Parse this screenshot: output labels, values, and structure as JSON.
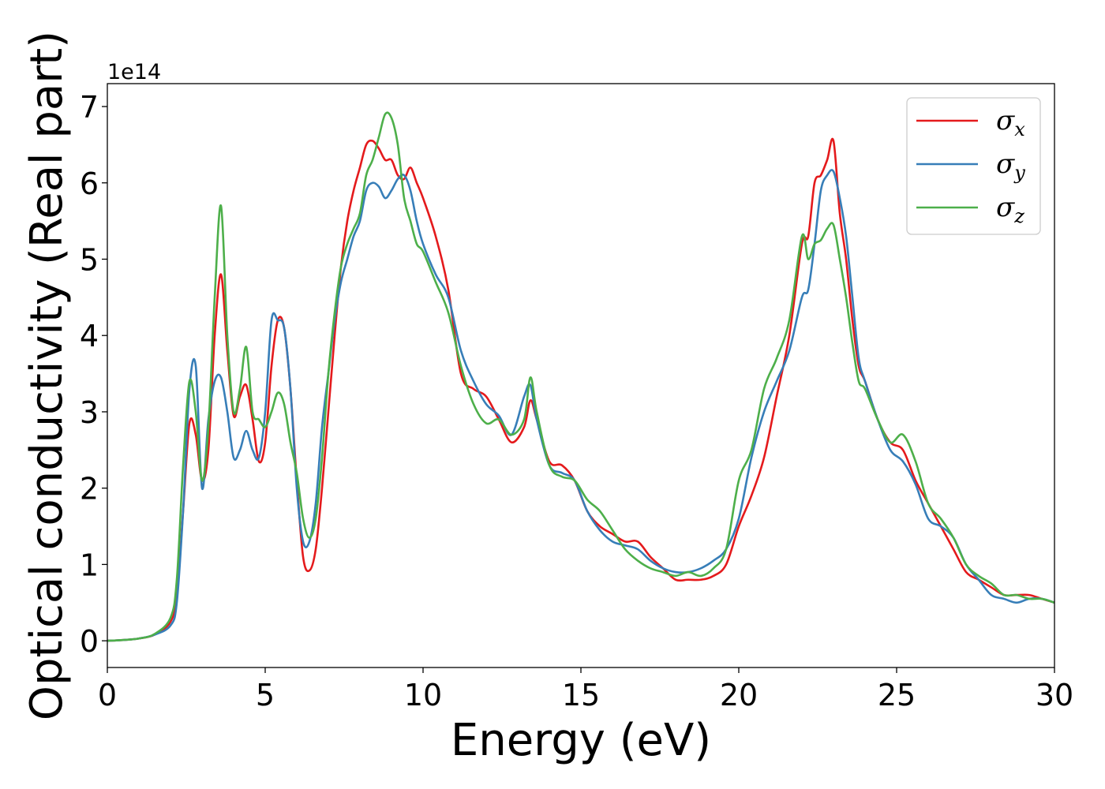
{
  "chart_data": {
    "type": "line",
    "title": "",
    "xlabel": "Energy (eV)",
    "ylabel": "Optical conductivity (Real part)",
    "y_offset_label": "1e14",
    "xlim": [
      0,
      30
    ],
    "ylim": [
      -0.35,
      7.3
    ],
    "x_ticks": [
      0,
      5,
      10,
      15,
      20,
      25,
      30
    ],
    "y_ticks": [
      0,
      1,
      2,
      3,
      4,
      5,
      6,
      7
    ],
    "grid": false,
    "legend_position": "top-right",
    "x": [
      0,
      0.5,
      1,
      1.5,
      2,
      2.2,
      2.4,
      2.6,
      2.8,
      3,
      3.2,
      3.4,
      3.6,
      3.8,
      4,
      4.2,
      4.4,
      4.6,
      4.8,
      5,
      5.2,
      5.4,
      5.6,
      5.8,
      6,
      6.2,
      6.4,
      6.6,
      6.8,
      7,
      7.2,
      7.4,
      7.6,
      7.8,
      8,
      8.2,
      8.4,
      8.6,
      8.8,
      9,
      9.2,
      9.4,
      9.6,
      9.8,
      10,
      10.4,
      10.8,
      11.2,
      11.6,
      12,
      12.4,
      12.8,
      13.2,
      13.4,
      13.6,
      14,
      14.4,
      14.8,
      15.2,
      15.6,
      16,
      16.4,
      16.8,
      17.2,
      17.6,
      18,
      18.4,
      18.8,
      19.2,
      19.6,
      20,
      20.4,
      20.8,
      21.2,
      21.6,
      22,
      22.2,
      22.4,
      22.6,
      22.8,
      23,
      23.2,
      23.4,
      23.6,
      23.8,
      24,
      24.4,
      24.8,
      25.2,
      25.6,
      26,
      26.4,
      26.8,
      27.2,
      27.6,
      28,
      28.4,
      28.8,
      29.2,
      29.6,
      30
    ],
    "series": [
      {
        "name": "σx",
        "subscript": "x",
        "color": "#e41a1c",
        "values": [
          0,
          0.01,
          0.03,
          0.08,
          0.25,
          0.6,
          1.7,
          2.85,
          2.7,
          2.1,
          2.5,
          4.0,
          4.8,
          3.8,
          2.95,
          3.2,
          3.35,
          2.9,
          2.35,
          2.6,
          3.6,
          4.2,
          4.1,
          3.3,
          2.1,
          1.1,
          0.92,
          1.2,
          2.0,
          3.0,
          4.0,
          4.9,
          5.5,
          5.9,
          6.2,
          6.5,
          6.55,
          6.45,
          6.3,
          6.3,
          6.1,
          6.05,
          6.2,
          6.0,
          5.8,
          5.3,
          4.6,
          3.5,
          3.3,
          3.2,
          2.9,
          2.6,
          2.8,
          3.15,
          2.9,
          2.35,
          2.3,
          2.1,
          1.7,
          1.5,
          1.4,
          1.3,
          1.3,
          1.1,
          0.95,
          0.8,
          0.8,
          0.8,
          0.85,
          1.0,
          1.5,
          1.9,
          2.4,
          3.2,
          4.0,
          5.2,
          5.3,
          6.0,
          6.1,
          6.3,
          6.55,
          5.6,
          5.0,
          4.2,
          3.6,
          3.4,
          2.9,
          2.6,
          2.5,
          2.1,
          1.8,
          1.5,
          1.2,
          0.9,
          0.8,
          0.7,
          0.6,
          0.6,
          0.6,
          0.55,
          0.5
        ]
      },
      {
        "name": "σy",
        "subscript": "y",
        "color": "#377eb8",
        "values": [
          0,
          0.01,
          0.03,
          0.08,
          0.2,
          0.5,
          1.7,
          3.3,
          3.6,
          2.0,
          2.9,
          3.4,
          3.45,
          3.0,
          2.4,
          2.5,
          2.75,
          2.5,
          2.4,
          3.0,
          4.2,
          4.2,
          4.1,
          3.3,
          2.0,
          1.3,
          1.3,
          1.8,
          2.8,
          3.5,
          4.2,
          4.7,
          5.0,
          5.3,
          5.5,
          5.9,
          6.0,
          5.95,
          5.8,
          5.9,
          6.05,
          6.1,
          5.9,
          5.5,
          5.2,
          4.8,
          4.5,
          3.8,
          3.4,
          3.1,
          2.95,
          2.7,
          3.2,
          3.35,
          2.9,
          2.3,
          2.2,
          2.1,
          1.7,
          1.45,
          1.3,
          1.25,
          1.2,
          1.05,
          0.95,
          0.9,
          0.9,
          0.95,
          1.05,
          1.2,
          1.6,
          2.4,
          3.0,
          3.4,
          3.8,
          4.5,
          4.6,
          5.2,
          5.9,
          6.1,
          6.15,
          5.8,
          5.3,
          4.5,
          3.7,
          3.4,
          2.9,
          2.5,
          2.35,
          2.05,
          1.6,
          1.5,
          1.35,
          1.0,
          0.8,
          0.6,
          0.55,
          0.5,
          0.55,
          0.55,
          0.5
        ]
      },
      {
        "name": "σz",
        "subscript": "z",
        "color": "#4daf4a",
        "values": [
          0,
          0.01,
          0.03,
          0.09,
          0.3,
          0.8,
          2.3,
          3.4,
          3.0,
          2.1,
          2.8,
          4.5,
          5.7,
          4.0,
          3.0,
          3.3,
          3.85,
          3.0,
          2.9,
          2.8,
          3.0,
          3.25,
          3.1,
          2.6,
          2.2,
          1.6,
          1.35,
          1.6,
          2.4,
          3.5,
          4.3,
          4.9,
          5.2,
          5.4,
          5.6,
          6.1,
          6.3,
          6.6,
          6.9,
          6.85,
          6.5,
          5.8,
          5.5,
          5.2,
          5.1,
          4.7,
          4.3,
          3.6,
          3.1,
          2.85,
          2.9,
          2.7,
          2.9,
          3.45,
          3.0,
          2.3,
          2.15,
          2.1,
          1.85,
          1.7,
          1.45,
          1.2,
          1.05,
          0.95,
          0.9,
          0.85,
          0.9,
          0.85,
          0.95,
          1.2,
          2.1,
          2.5,
          3.3,
          3.7,
          4.2,
          5.3,
          5.0,
          5.2,
          5.25,
          5.4,
          5.45,
          5.0,
          4.5,
          3.9,
          3.4,
          3.3,
          2.9,
          2.6,
          2.7,
          2.35,
          1.8,
          1.6,
          1.35,
          1.0,
          0.85,
          0.75,
          0.6,
          0.6,
          0.55,
          0.55,
          0.5
        ]
      }
    ]
  }
}
